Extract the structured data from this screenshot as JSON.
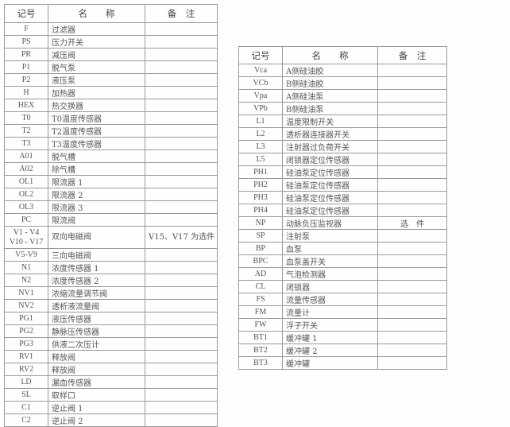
{
  "headers": {
    "code": "记号",
    "name": "名　　称",
    "note": "备　注"
  },
  "left_table": [
    {
      "code": "F",
      "name": "过滤器",
      "note": ""
    },
    {
      "code": "PS",
      "name": "压力开关",
      "note": ""
    },
    {
      "code": "PR",
      "name": "减压阀",
      "note": ""
    },
    {
      "code": "P1",
      "name": "脱气泵",
      "note": ""
    },
    {
      "code": "P2",
      "name": "液压泵",
      "note": ""
    },
    {
      "code": "H",
      "name": "加热器",
      "note": ""
    },
    {
      "code": "HEX",
      "name": "热交换器",
      "note": ""
    },
    {
      "code": "T0",
      "name": "T0温度传感器",
      "note": ""
    },
    {
      "code": "T2",
      "name": "T2温度传感器",
      "note": ""
    },
    {
      "code": "T3",
      "name": "T3温度传感器",
      "note": ""
    },
    {
      "code": "A01",
      "name": "脱气槽",
      "note": ""
    },
    {
      "code": "A02",
      "name": "除气槽",
      "note": ""
    },
    {
      "code": "OL1",
      "name": "限流器 1",
      "note": ""
    },
    {
      "code": "OL2",
      "name": "限流器 2",
      "note": ""
    },
    {
      "code": "OL3",
      "name": "限流器 3",
      "note": ""
    },
    {
      "code": "PC",
      "name": "限流阀",
      "note": ""
    },
    {
      "code": "V1 - V4\nV10 - V17",
      "name": "双向电磁阀",
      "note": "V15、V17 为选件"
    },
    {
      "code": "V5-V9",
      "name": "三向电磁阀",
      "note": ""
    },
    {
      "code": "N1",
      "name": "浓度传感器 1",
      "note": ""
    },
    {
      "code": "N2",
      "name": "浓度传感器 2",
      "note": ""
    },
    {
      "code": "NV1",
      "name": "浓缩流量调节阀",
      "note": ""
    },
    {
      "code": "NV2",
      "name": "透析液流量阀",
      "note": ""
    },
    {
      "code": "PG1",
      "name": "液压传感器",
      "note": ""
    },
    {
      "code": "PG2",
      "name": "静脉压传感器",
      "note": ""
    },
    {
      "code": "PG3",
      "name": "供液二次压计",
      "note": ""
    },
    {
      "code": "RV1",
      "name": "释放阀",
      "note": ""
    },
    {
      "code": "RV2",
      "name": "释放阀",
      "note": ""
    },
    {
      "code": "LD",
      "name": "漏血传感器",
      "note": ""
    },
    {
      "code": "SL",
      "name": "取样口",
      "note": ""
    },
    {
      "code": "C1",
      "name": "逆止阀 1",
      "note": ""
    },
    {
      "code": "C2",
      "name": "逆止阀 2",
      "note": ""
    }
  ],
  "right_table": [
    {
      "code": "Vca",
      "name": "A侧硅油胶",
      "note": ""
    },
    {
      "code": "VCb",
      "name": "B侧硅油胶",
      "note": ""
    },
    {
      "code": "Vpa",
      "name": "A侧硅油泵",
      "note": ""
    },
    {
      "code": "VPb",
      "name": "B侧硅油泵",
      "note": ""
    },
    {
      "code": "L1",
      "name": "温度限制开关",
      "note": ""
    },
    {
      "code": "L2",
      "name": "透析器连接器开关",
      "note": ""
    },
    {
      "code": "L3",
      "name": "注射器过负荷开关",
      "note": ""
    },
    {
      "code": "L5",
      "name": "闭锁器定位传感器",
      "note": ""
    },
    {
      "code": "PH1",
      "name": "硅油泵定位传感器",
      "note": ""
    },
    {
      "code": "PH2",
      "name": "硅油泵定位传感器",
      "note": ""
    },
    {
      "code": "PH3",
      "name": "硅油泵定位传感器",
      "note": ""
    },
    {
      "code": "PH4",
      "name": "硅油泵定位传感器",
      "note": ""
    },
    {
      "code": "NP",
      "name": "动脉负压监视器",
      "note": "选　件"
    },
    {
      "code": "SP",
      "name": "注射泵",
      "note": ""
    },
    {
      "code": "BP",
      "name": "血泵",
      "note": ""
    },
    {
      "code": "BPC",
      "name": "血泵盖开关",
      "note": ""
    },
    {
      "code": "AD",
      "name": "气泡检测器",
      "note": ""
    },
    {
      "code": "CL",
      "name": "闭锁器",
      "note": ""
    },
    {
      "code": "FS",
      "name": "流量传感器",
      "note": ""
    },
    {
      "code": "FM",
      "name": "流量计",
      "note": ""
    },
    {
      "code": "FW",
      "name": "浮子开关",
      "note": ""
    },
    {
      "code": "BT1",
      "name": "缓冲罐 1",
      "note": ""
    },
    {
      "code": "BT2",
      "name": "缓冲罐 2",
      "note": ""
    },
    {
      "code": "BT3",
      "name": "缓冲罐",
      "note": ""
    }
  ]
}
